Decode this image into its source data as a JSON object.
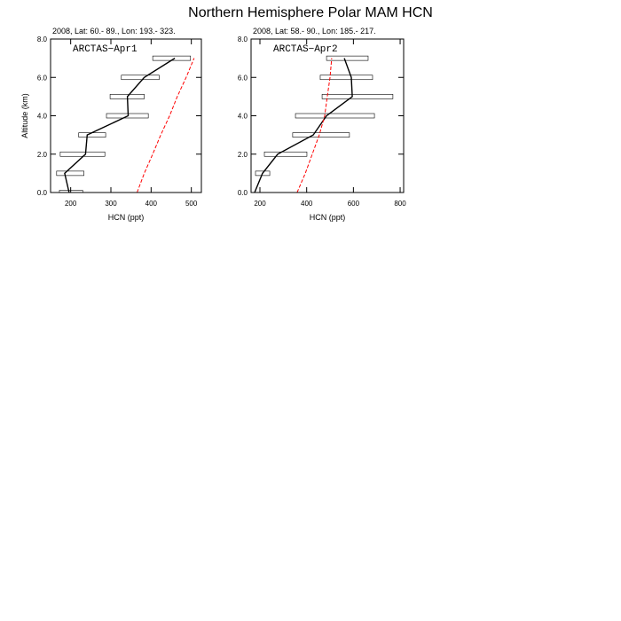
{
  "title": "Northern Hemisphere Polar MAM HCN",
  "chart_data": [
    {
      "type": "line",
      "subtitle": "2008, Lat:  60.- 89., Lon: 193.- 323.",
      "annotation": "ARCTAS−Apr1",
      "xlabel": "HCN (ppt)",
      "ylabel": "Altitude (km)",
      "xlim": [
        150,
        525
      ],
      "xticks": [
        200,
        300,
        400,
        500
      ],
      "ylim": [
        0,
        8
      ],
      "yticks": [
        {
          "value": 0,
          "label": "0.0"
        },
        {
          "value": 2,
          "label": "2.0"
        },
        {
          "value": 4,
          "label": "4.0"
        },
        {
          "value": 6,
          "label": "6.0"
        },
        {
          "value": 8,
          "label": "8.0"
        }
      ],
      "y": [
        0,
        1,
        2,
        3,
        4,
        5,
        6,
        7
      ],
      "series": [
        {
          "color": "#000000",
          "line_style": "solid",
          "values": [
            196,
            185,
            237,
            241,
            343,
            341,
            383,
            459
          ]
        },
        {
          "color": "#ff0000",
          "line_style": "dashed",
          "values": [
            365,
            383,
            404,
            424,
            446,
            465,
            487,
            507
          ]
        }
      ],
      "ranges": {
        "low": [
          172,
          165,
          174,
          220,
          289,
          298,
          326,
          404
        ],
        "high": [
          230,
          233,
          285,
          287,
          393,
          383,
          420,
          498
        ]
      }
    },
    {
      "type": "line",
      "subtitle": "2008, Lat:  58.- 90., Lon: 185.- 217.",
      "annotation": "ARCTAS−Apr2",
      "xlabel": "HCN (ppt)",
      "xlim": [
        162,
        815
      ],
      "xticks": [
        200,
        400,
        600,
        800
      ],
      "ylim": [
        0,
        8
      ],
      "yticks": [
        {
          "value": 0,
          "label": "0.0"
        },
        {
          "value": 2,
          "label": "2.0"
        },
        {
          "value": 4,
          "label": "4.0"
        },
        {
          "value": 6,
          "label": "6.0"
        },
        {
          "value": 8,
          "label": "8.0"
        }
      ],
      "y": [
        0,
        1,
        2,
        3,
        4,
        5,
        6,
        7
      ],
      "series": [
        {
          "color": "#000000",
          "line_style": "solid",
          "values": [
            177,
            211,
            276,
            428,
            485,
            595,
            591,
            561
          ]
        },
        {
          "color": "#ff0000",
          "line_style": "dashed",
          "values": [
            359,
            394,
            424,
            454,
            477,
            488,
            500,
            507
          ]
        }
      ],
      "ranges": {
        "low": [
          null,
          181,
          219,
          340,
          352,
          466,
          458,
          485
        ],
        "high": [
          null,
          242,
          401,
          583,
          690,
          769,
          682,
          663
        ]
      }
    }
  ]
}
